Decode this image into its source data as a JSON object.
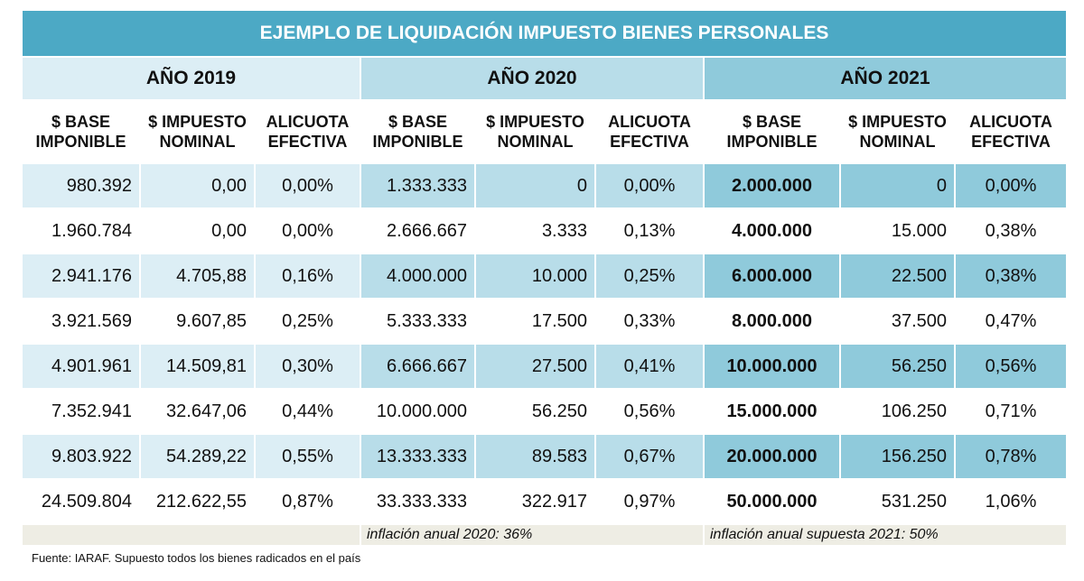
{
  "title": "EJEMPLO DE LIQUIDACIÓN IMPUESTO BIENES PERSONALES",
  "years": [
    "AÑO 2019",
    "AÑO 2020",
    "AÑO 2021"
  ],
  "col_headers": {
    "base": [
      "$ BASE",
      "IMPONIBLE"
    ],
    "impuesto": [
      "$ IMPUESTO",
      "NOMINAL"
    ],
    "alicuota": [
      "ALICUOTA",
      "EFECTIVA"
    ]
  },
  "rows": [
    [
      "980.392",
      "0,00",
      "0,00%",
      "1.333.333",
      "0",
      "0,00%",
      "2.000.000",
      "0",
      "0,00%"
    ],
    [
      "1.960.784",
      "0,00",
      "0,00%",
      "2.666.667",
      "3.333",
      "0,13%",
      "4.000.000",
      "15.000",
      "0,38%"
    ],
    [
      "2.941.176",
      "4.705,88",
      "0,16%",
      "4.000.000",
      "10.000",
      "0,25%",
      "6.000.000",
      "22.500",
      "0,38%"
    ],
    [
      "3.921.569",
      "9.607,85",
      "0,25%",
      "5.333.333",
      "17.500",
      "0,33%",
      "8.000.000",
      "37.500",
      "0,47%"
    ],
    [
      "4.901.961",
      "14.509,81",
      "0,30%",
      "6.666.667",
      "27.500",
      "0,41%",
      "10.000.000",
      "56.250",
      "0,56%"
    ],
    [
      "7.352.941",
      "32.647,06",
      "0,44%",
      "10.000.000",
      "56.250",
      "0,56%",
      "15.000.000",
      "106.250",
      "0,71%"
    ],
    [
      "9.803.922",
      "54.289,22",
      "0,55%",
      "13.333.333",
      "89.583",
      "0,67%",
      "20.000.000",
      "156.250",
      "0,78%"
    ],
    [
      "24.509.804",
      "212.622,55",
      "0,87%",
      "33.333.333",
      "322.917",
      "0,97%",
      "50.000.000",
      "531.250",
      "1,06%"
    ]
  ],
  "notes": {
    "n2020": "inflación anual 2020: 36%",
    "n2021": "inflación anual supuesta 2021: 50%"
  },
  "source": "Fuente: IARAF. Supuesto todos los bienes radicados en el país",
  "colors": {
    "title_bg": "#4ca9c5",
    "band_2019": "#dceef5",
    "band_2020": "#b8dde9",
    "band_2021": "#8fcadb",
    "note_bg": "#eeede4"
  }
}
